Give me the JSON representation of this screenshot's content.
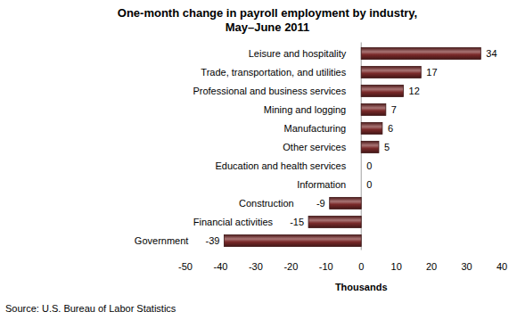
{
  "chart_data": {
    "type": "bar",
    "orientation": "horizontal",
    "title": "One-month change in payroll employment by industry,",
    "subtitle": "May–June 2011",
    "categories": [
      "Leisure and hospitality",
      "Trade, transportation, and utilities",
      "Professional and business services",
      "Mining and logging",
      "Manufacturing",
      "Other services",
      "Education and health services",
      "Information",
      "Construction",
      "Financial activities",
      "Government"
    ],
    "values": [
      34,
      17,
      12,
      7,
      6,
      5,
      0,
      0,
      -9,
      -15,
      -39
    ],
    "color": "#7a2a2a",
    "data_labels": true,
    "grid": false,
    "xlim": [
      -50,
      40
    ],
    "xticks": [
      -50,
      -40,
      -30,
      -20,
      -10,
      0,
      10,
      20,
      30,
      40
    ],
    "x_label": "Thousands",
    "source": "Source:  U.S. Bureau of Labor Statistics"
  }
}
